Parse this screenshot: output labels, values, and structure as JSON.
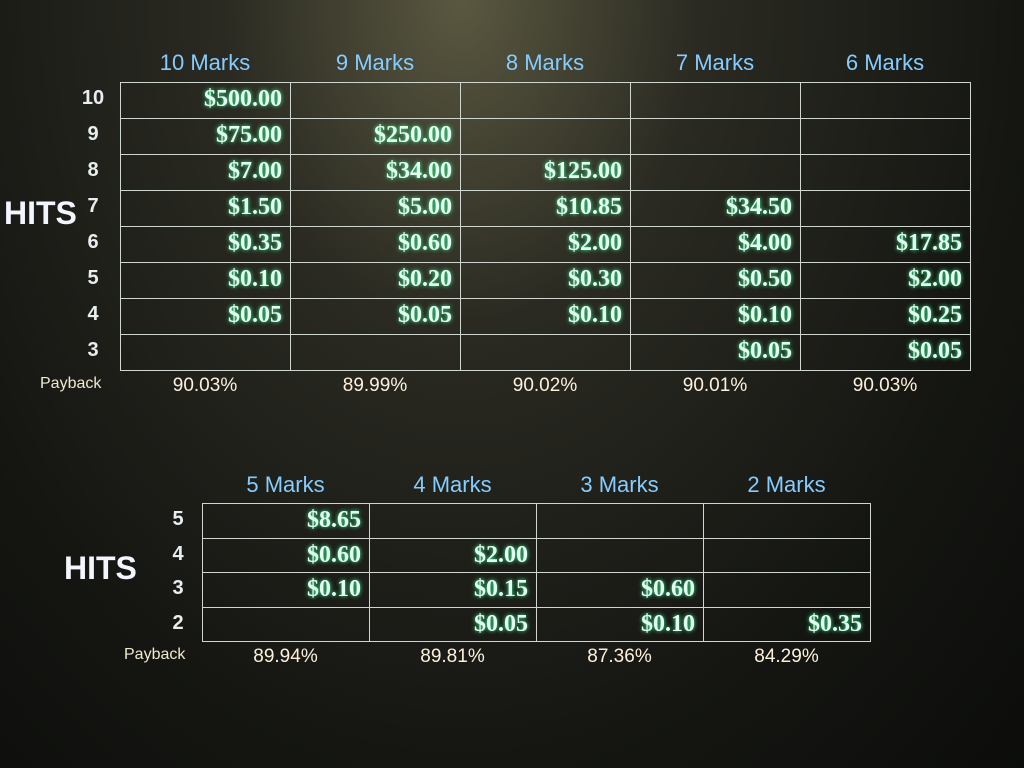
{
  "tables": [
    {
      "side_label": "HITS",
      "payback_label": "Payback",
      "columns": [
        "10 Marks",
        "9 Marks",
        "8 Marks",
        "7 Marks",
        "6 Marks"
      ],
      "rows": [
        {
          "hits": "10",
          "cells": [
            "$500.00",
            null,
            null,
            null,
            null
          ]
        },
        {
          "hits": "9",
          "cells": [
            "$75.00",
            "$250.00",
            null,
            null,
            null
          ]
        },
        {
          "hits": "8",
          "cells": [
            "$7.00",
            "$34.00",
            "$125.00",
            null,
            null
          ]
        },
        {
          "hits": "7",
          "cells": [
            "$1.50",
            "$5.00",
            "$10.85",
            "$34.50",
            null
          ]
        },
        {
          "hits": "6",
          "cells": [
            "$0.35",
            "$0.60",
            "$2.00",
            "$4.00",
            "$17.85"
          ]
        },
        {
          "hits": "5",
          "cells": [
            "$0.10",
            "$0.20",
            "$0.30",
            "$0.50",
            "$2.00"
          ]
        },
        {
          "hits": "4",
          "cells": [
            "$0.05",
            "$0.05",
            "$0.10",
            "$0.10",
            "$0.25"
          ]
        },
        {
          "hits": "3",
          "cells": [
            null,
            null,
            null,
            "$0.05",
            "$0.05"
          ]
        }
      ],
      "payback": [
        "90.03%",
        "89.99%",
        "90.02%",
        "90.01%",
        "90.03%"
      ]
    },
    {
      "side_label": "HITS",
      "payback_label": "Payback",
      "columns": [
        "5 Marks",
        "4 Marks",
        "3 Marks",
        "2 Marks"
      ],
      "rows": [
        {
          "hits": "5",
          "cells": [
            "$8.65",
            null,
            null,
            null
          ]
        },
        {
          "hits": "4",
          "cells": [
            "$0.60",
            "$2.00",
            null,
            null
          ]
        },
        {
          "hits": "3",
          "cells": [
            "$0.10",
            "$0.15",
            "$0.60",
            null
          ]
        },
        {
          "hits": "2",
          "cells": [
            null,
            "$0.05",
            "$0.10",
            "$0.35"
          ]
        }
      ],
      "payback": [
        "89.94%",
        "89.81%",
        "87.36%",
        "84.29%"
      ]
    }
  ]
}
